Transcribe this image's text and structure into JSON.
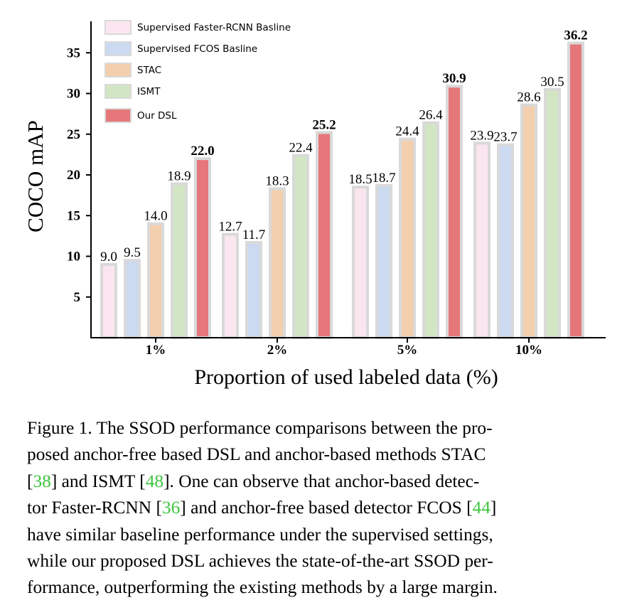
{
  "chart_data": {
    "type": "bar",
    "title": "",
    "xlabel": "Proportion of used labeled data (%)",
    "ylabel": "COCO mAP",
    "ylim": [
      0,
      37.5
    ],
    "yticks": [
      5,
      10,
      15,
      20,
      25,
      30,
      35
    ],
    "categories": [
      "1%",
      "2%",
      "5%",
      "10%"
    ],
    "legend_position": "top-left",
    "grid": false,
    "series": [
      {
        "name": "Supervised Faster-RCNN Basline",
        "color": "#fbe6ef",
        "values": [
          9.0,
          12.7,
          18.5,
          23.9
        ],
        "labels": [
          "9.0",
          "12.7",
          "18.5",
          "23.9"
        ]
      },
      {
        "name": "Supervised FCOS Basline",
        "color": "#cbdaf0",
        "values": [
          9.5,
          11.7,
          18.7,
          23.7
        ],
        "labels": [
          "9.5",
          "11.7",
          "18.7",
          "23.7"
        ]
      },
      {
        "name": "STAC",
        "color": "#f3cfae",
        "values": [
          14.0,
          18.3,
          24.4,
          28.6
        ],
        "labels": [
          "14.0",
          "18.3",
          "24.4",
          "28.6"
        ]
      },
      {
        "name": "ISMT",
        "color": "#d3e6c4",
        "values": [
          18.9,
          22.4,
          26.4,
          30.5
        ],
        "labels": [
          "18.9",
          "22.4",
          "26.4",
          "30.5"
        ]
      },
      {
        "name": "Our DSL",
        "color": "#e5767a",
        "values": [
          22.0,
          25.2,
          30.9,
          36.2
        ],
        "labels": [
          "22.0",
          "25.2",
          "30.9",
          "36.2"
        ],
        "bold_labels": true
      }
    ]
  },
  "caption": {
    "line1": "Figure 1.  The SSOD performance comparisons between the pro-",
    "line2": "posed anchor-free based DSL and anchor-based methods STAC",
    "line3_pre": "[",
    "ref38": "38",
    "line3_mid": "] and ISMT [",
    "ref48": "48",
    "line3_post": "].  One can observe that anchor-based detec-",
    "line4_pre": "tor Faster-RCNN [",
    "ref36": "36",
    "line4_mid": "] and anchor-free based detector FCOS [",
    "ref44": "44",
    "line4_post": "]",
    "line5": "have similar baseline performance under the supervised settings,",
    "line6": "while our proposed DSL achieves the state-of-the-art SSOD per-",
    "line7": "formance, outperforming the existing methods by a large margin."
  }
}
